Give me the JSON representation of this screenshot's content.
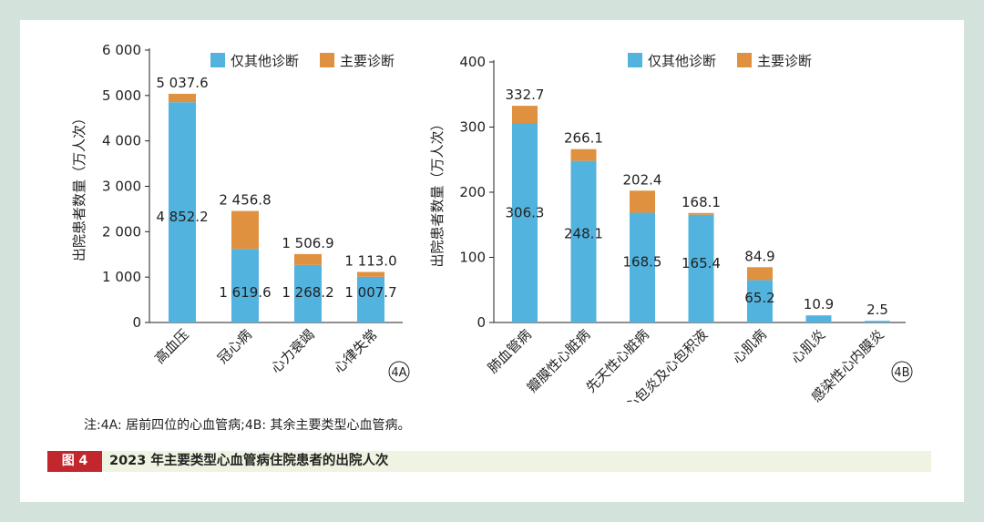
{
  "colors": {
    "other": "#53b3df",
    "main": "#e0913f",
    "background": "#d4e2dc"
  },
  "legend": {
    "other_label": "仅其他诊断",
    "main_label": "主要诊断"
  },
  "note": "注:4A: 居前四位的心血管病;4B: 其余主要类型心血管病。",
  "caption": {
    "tag": "图 4",
    "title": "2023 年主要类型心血管病住院患者的出院人次"
  },
  "chart_data": [
    {
      "id": "4A",
      "type": "bar",
      "stacked": true,
      "tag": "4A",
      "ylabel": "出院患者数量（万人次）",
      "ylim": [
        0,
        6000
      ],
      "yticks": [
        0,
        1000,
        2000,
        3000,
        4000,
        5000,
        6000
      ],
      "ytick_labels": [
        "0",
        "1 000",
        "2 000",
        "3 000",
        "4 000",
        "5 000",
        "6 000"
      ],
      "categories": [
        "高血压",
        "冠心病",
        "心力衰竭",
        "心律失常"
      ],
      "series": [
        {
          "name": "仅其他诊断",
          "values": [
            4852.2,
            1619.6,
            1268.2,
            1007.7
          ],
          "labels": [
            "4 852.2",
            "1 619.6",
            "1 268.2",
            "1 007.7"
          ]
        },
        {
          "name": "主要诊断",
          "values": [
            185.4,
            837.2,
            238.7,
            105.3
          ]
        }
      ],
      "totals": [
        5037.6,
        2456.8,
        1506.9,
        1113.0
      ],
      "total_labels": [
        "5 037.6",
        "2 456.8",
        "1 506.9",
        "1 113.0"
      ]
    },
    {
      "id": "4B",
      "type": "bar",
      "stacked": true,
      "tag": "4B",
      "ylabel": "出院患者数量（万人次）",
      "ylim": [
        0,
        400
      ],
      "yticks": [
        0,
        100,
        200,
        300,
        400
      ],
      "ytick_labels": [
        "0",
        "100",
        "200",
        "300",
        "400"
      ],
      "categories": [
        "肺血管病",
        "瓣膜性心脏病",
        "先天性心脏病",
        "心包炎及心包积液",
        "心肌病",
        "心肌炎",
        "感染性心内膜炎"
      ],
      "series": [
        {
          "name": "仅其他诊断",
          "values": [
            306.3,
            248.1,
            168.5,
            165.4,
            65.2,
            10.9,
            2.5
          ],
          "labels": [
            "306.3",
            "248.1",
            "168.5",
            "165.4",
            "65.2",
            "",
            ""
          ]
        },
        {
          "name": "主要诊断",
          "values": [
            26.4,
            18.0,
            33.9,
            2.7,
            19.7,
            0,
            0
          ]
        }
      ],
      "totals": [
        332.7,
        266.1,
        202.4,
        168.1,
        84.9,
        10.9,
        2.5
      ],
      "total_labels": [
        "332.7",
        "266.1",
        "202.4",
        "168.1",
        "84.9",
        "10.9",
        "2.5"
      ]
    }
  ]
}
